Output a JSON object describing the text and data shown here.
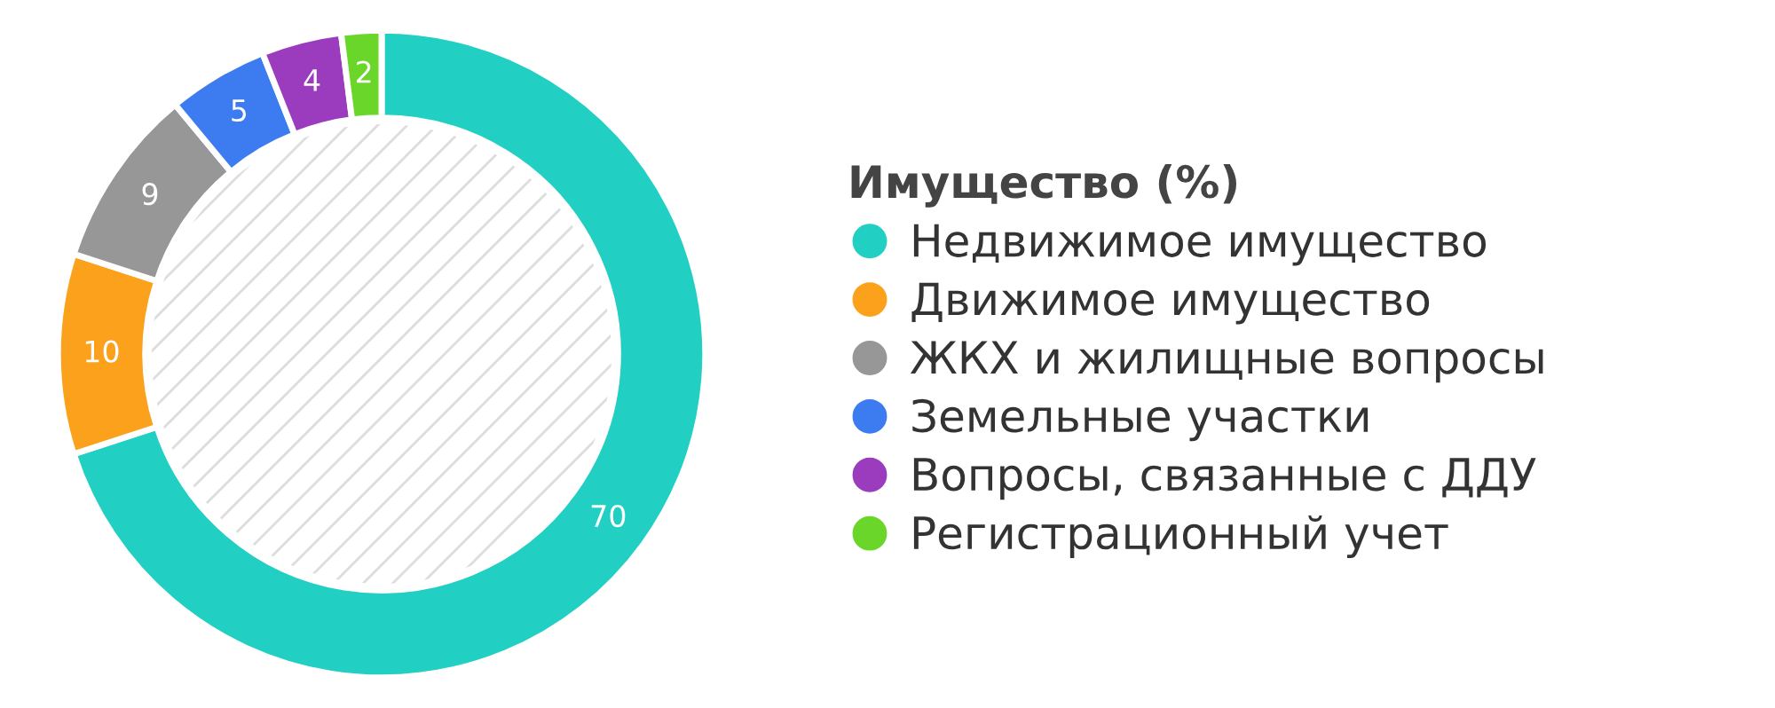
{
  "chart_data": {
    "type": "donut",
    "legend_title": "Имущество (%)",
    "categories": [
      "Недвижимое имущество",
      "Движимое имущество",
      "ЖКХ и жилищные вопросы",
      "Земельные участки",
      "Вопросы, связанные с ДДУ",
      "Регистрационный учет"
    ],
    "values": [
      70,
      10,
      9,
      5,
      4,
      2
    ],
    "colors": [
      "#22cfc3",
      "#fba11b",
      "#979797",
      "#3d7cf0",
      "#9b3cbf",
      "#6bd62a"
    ],
    "data_labels": true,
    "legend": "right"
  }
}
